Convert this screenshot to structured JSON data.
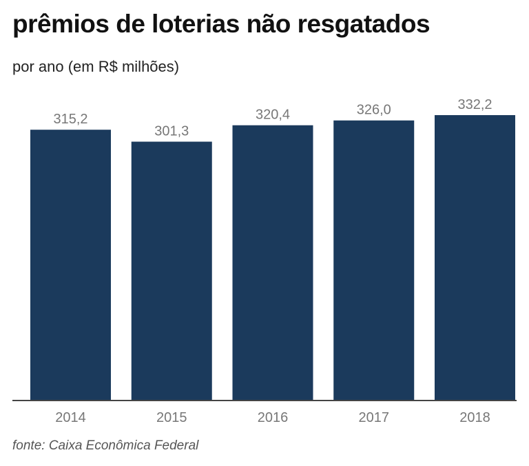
{
  "chart_data": {
    "type": "bar",
    "title": "prêmios de loterias não resgatados",
    "subtitle": "por ano (em R$ milhões)",
    "xlabel": "",
    "ylabel": "",
    "categories": [
      "2014",
      "2015",
      "2016",
      "2017",
      "2018"
    ],
    "values": [
      315.2,
      301.3,
      320.4,
      326.0,
      332.2
    ],
    "value_labels": [
      "315,2",
      "301,3",
      "320,4",
      "326,0",
      "332,2"
    ],
    "ylim": [
      0,
      332.2
    ],
    "grid": false,
    "bar_color": "#1b3a5c",
    "source": "fonte: Caixa Econômica Federal"
  }
}
